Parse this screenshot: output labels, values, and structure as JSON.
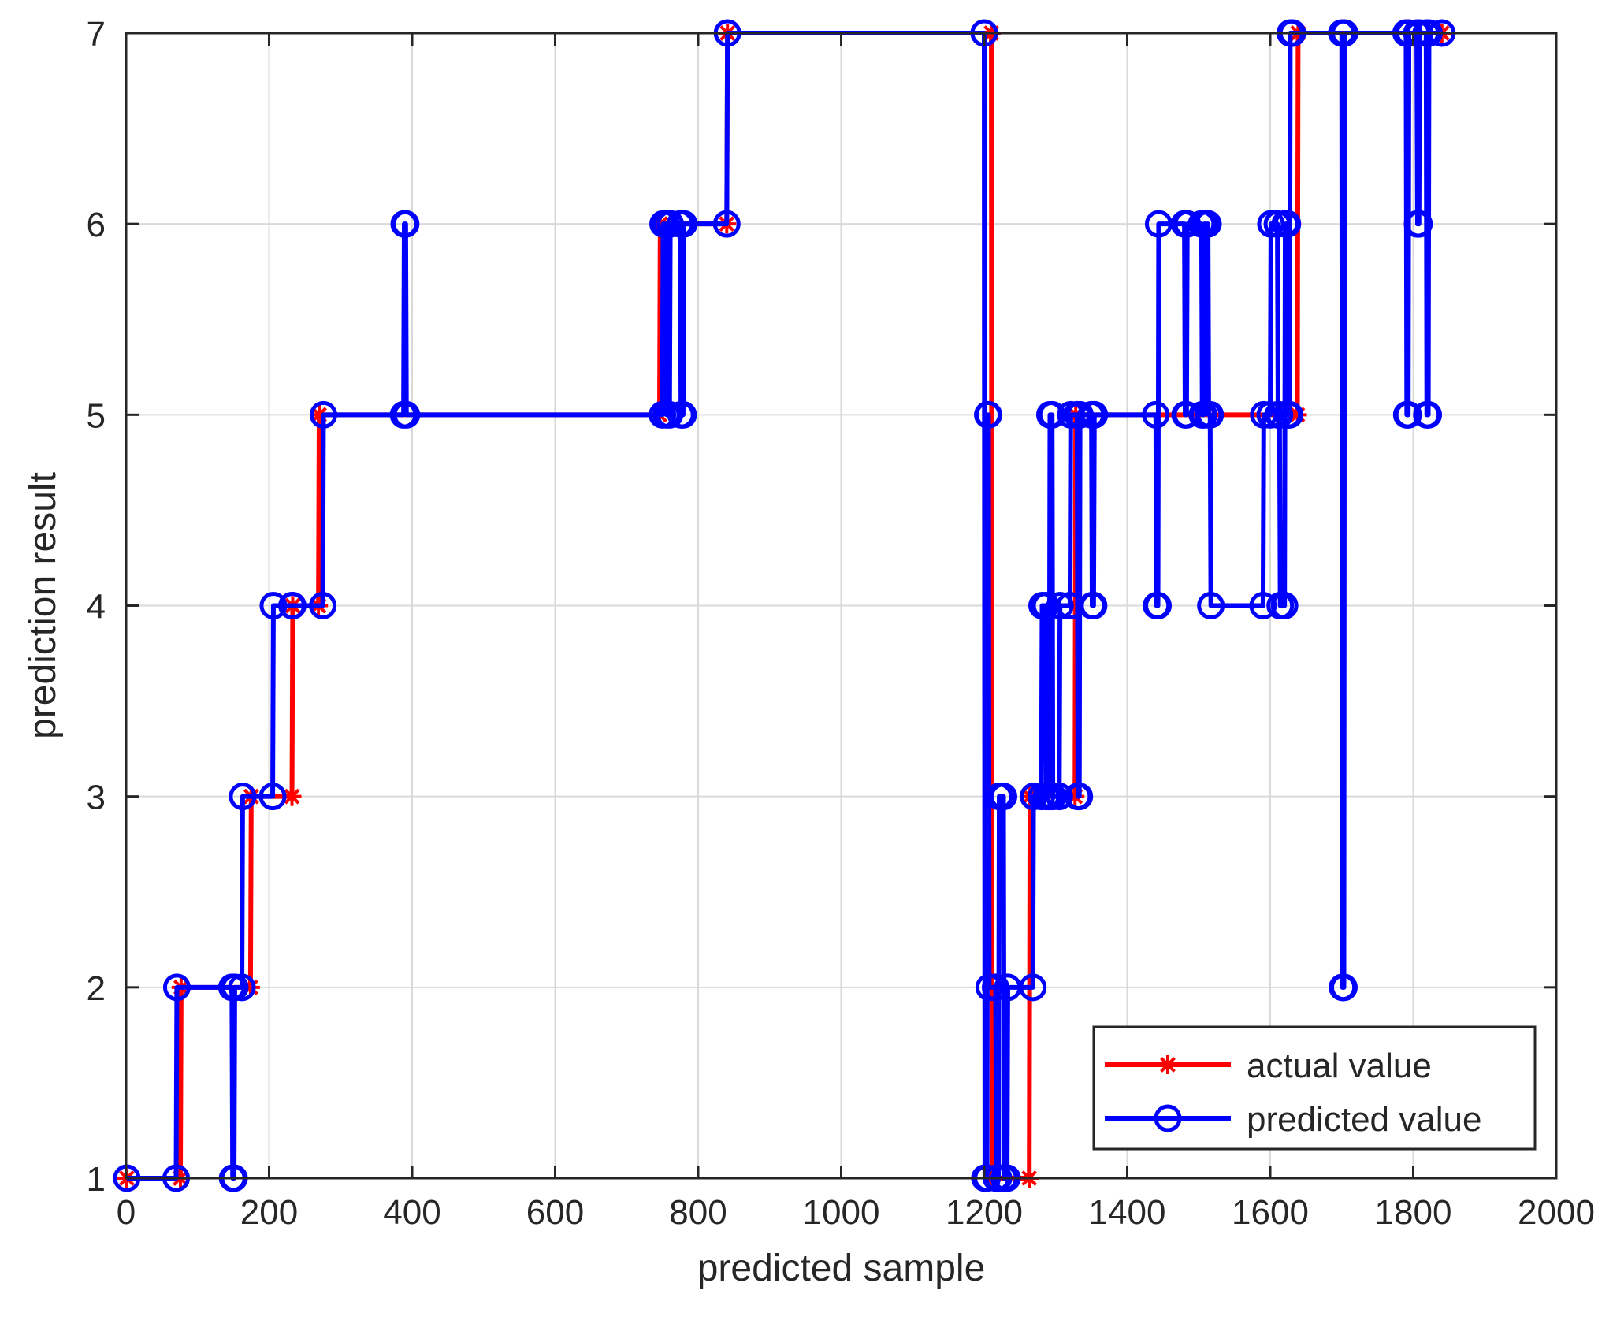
{
  "chart_data": {
    "type": "line",
    "title": "",
    "xlabel": "predicted sample",
    "ylabel": "prediction result",
    "xlim": [
      0,
      2000
    ],
    "ylim": [
      1,
      7
    ],
    "xticks": [
      0,
      200,
      400,
      600,
      800,
      1000,
      1200,
      1400,
      1600,
      1800,
      2000
    ],
    "yticks": [
      1,
      2,
      3,
      4,
      5,
      6,
      7
    ],
    "grid": true,
    "legend_position": "bottom-right",
    "series": [
      {
        "name": "actual value",
        "color": "#ff0000",
        "marker": "asterisk",
        "x": [
          1,
          76,
          77,
          174,
          175,
          232,
          233,
          269,
          270,
          746,
          747,
          840,
          841,
          1210,
          1211,
          1263,
          1264,
          1327,
          1328,
          1638,
          1639,
          1840
        ],
        "y": [
          1,
          1,
          2,
          2,
          3,
          3,
          4,
          4,
          5,
          5,
          6,
          6,
          7,
          7,
          1,
          1,
          3,
          3,
          5,
          5,
          7,
          7
        ]
      },
      {
        "name": "predicted value",
        "color": "#0000ff",
        "marker": "circle",
        "x": [
          1,
          70,
          71,
          148,
          149,
          151,
          152,
          162,
          163,
          205,
          206,
          232,
          233,
          275,
          276,
          388,
          389,
          391,
          392,
          750,
          751,
          755,
          756,
          760,
          761,
          775,
          776,
          779,
          780,
          840,
          841,
          1200,
          1201,
          1204,
          1205,
          1206,
          1207,
          1216,
          1217,
          1220,
          1221,
          1227,
          1228,
          1232,
          1233,
          1268,
          1269,
          1280,
          1281,
          1286,
          1287,
          1291,
          1292,
          1295,
          1296,
          1305,
          1306,
          1320,
          1321,
          1330,
          1331,
          1333,
          1334,
          1350,
          1351,
          1353,
          1354,
          1440,
          1441,
          1443,
          1444,
          1480,
          1481,
          1483,
          1484,
          1504,
          1505,
          1507,
          1508,
          1513,
          1514,
          1516,
          1517,
          1590,
          1591,
          1600,
          1601,
          1610,
          1611,
          1613,
          1614,
          1620,
          1621,
          1624,
          1625,
          1627,
          1628,
          1630,
          1631,
          1700,
          1701,
          1703,
          1704,
          1790,
          1791,
          1793,
          1794,
          1805,
          1806,
          1808,
          1809,
          1818,
          1819,
          1821,
          1822,
          1840
        ],
        "y": [
          1,
          1,
          2,
          2,
          1,
          1,
          2,
          2,
          3,
          3,
          4,
          4,
          4,
          4,
          5,
          5,
          6,
          6,
          5,
          5,
          6,
          6,
          5,
          5,
          6,
          6,
          5,
          5,
          6,
          6,
          7,
          7,
          1,
          1,
          5,
          5,
          2,
          2,
          1,
          1,
          3,
          3,
          1,
          1,
          2,
          2,
          3,
          3,
          4,
          4,
          3,
          3,
          5,
          5,
          3,
          3,
          4,
          4,
          5,
          5,
          3,
          3,
          5,
          5,
          4,
          4,
          5,
          5,
          4,
          4,
          6,
          6,
          5,
          5,
          6,
          6,
          5,
          5,
          6,
          6,
          5,
          5,
          4,
          4,
          5,
          5,
          6,
          6,
          5,
          5,
          4,
          4,
          6,
          6,
          5,
          5,
          7,
          7,
          7,
          7,
          2,
          2,
          7,
          7,
          5,
          5,
          7,
          7,
          6,
          6,
          7,
          7,
          5,
          5,
          7,
          7
        ]
      }
    ]
  }
}
